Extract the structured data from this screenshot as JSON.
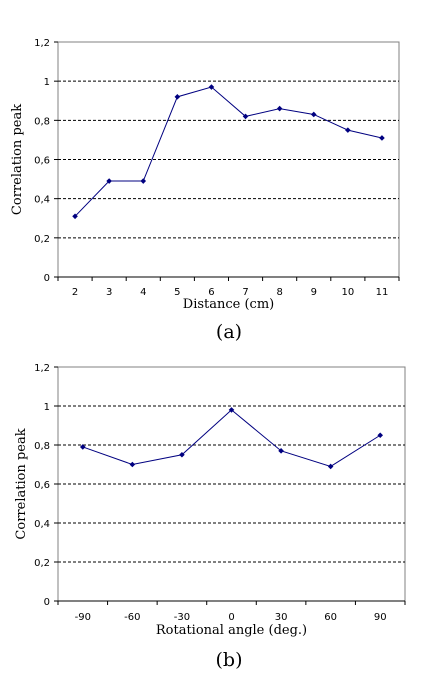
{
  "chart_data": [
    {
      "type": "line",
      "panel_label": "(a)",
      "xlabel": "Distance (cm)",
      "ylabel": "Correlation peak",
      "categories": [
        "2",
        "3",
        "4",
        "5",
        "6",
        "7",
        "8",
        "9",
        "10",
        "11"
      ],
      "values": [
        0.31,
        0.49,
        0.49,
        0.92,
        0.97,
        0.82,
        0.86,
        0.83,
        0.75,
        0.71
      ],
      "ylim": [
        0,
        1.2
      ],
      "y_ticks": [
        0,
        0.2,
        0.4,
        0.6,
        0.8,
        1,
        1.2
      ],
      "y_tick_labels": [
        "0",
        "0,2",
        "0,4",
        "0,6",
        "0,8",
        "1",
        "1,2"
      ],
      "grid": "dashed horizontal at 0.2 steps",
      "color": "#000080"
    },
    {
      "type": "line",
      "panel_label": "(b)",
      "xlabel": "Rotational angle (deg.)",
      "ylabel": "Correlation peak",
      "categories": [
        "-90",
        "-60",
        "-30",
        "0",
        "30",
        "60",
        "90"
      ],
      "values": [
        0.79,
        0.7,
        0.75,
        0.98,
        0.77,
        0.69,
        0.85
      ],
      "ylim": [
        0,
        1.2
      ],
      "y_ticks": [
        0,
        0.2,
        0.4,
        0.6,
        0.8,
        1,
        1.2
      ],
      "y_tick_labels": [
        "0",
        "0,2",
        "0,4",
        "0,6",
        "0,8",
        "1",
        "1,2"
      ],
      "grid": "dashed horizontal at 0.2 steps",
      "color": "#000080"
    }
  ]
}
